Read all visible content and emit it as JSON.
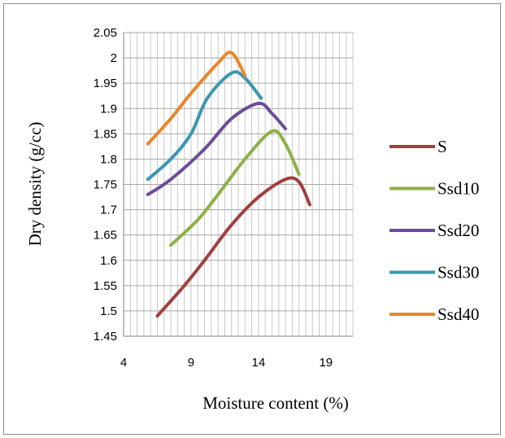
{
  "chart_data": {
    "type": "line",
    "title": "",
    "xlabel": "Moisture content (%)",
    "ylabel": "Dry density (g/cc)",
    "xlim": [
      4,
      21
    ],
    "ylim": [
      1.45,
      2.05
    ],
    "x_ticks": [
      "4",
      "9",
      "14",
      "19"
    ],
    "x_tick_values": [
      4,
      9,
      14,
      19
    ],
    "y_ticks": [
      "1.45",
      "1.5",
      "1.55",
      "1.6",
      "1.65",
      "1.7",
      "1.75",
      "1.8",
      "1.85",
      "1.9",
      "1.95",
      "2",
      "2.05"
    ],
    "y_tick_values": [
      1.45,
      1.5,
      1.55,
      1.6,
      1.65,
      1.7,
      1.75,
      1.8,
      1.85,
      1.9,
      1.95,
      2.0,
      2.05
    ],
    "grid": {
      "major": true,
      "minor_x": true
    },
    "legend_position": "right",
    "series": [
      {
        "name": "S",
        "color": "#a0413d",
        "x": [
          6.5,
          8.5,
          10,
          12,
          14,
          16,
          17,
          17.8
        ],
        "y": [
          1.49,
          1.55,
          1.6,
          1.67,
          1.725,
          1.76,
          1.755,
          1.71
        ]
      },
      {
        "name": "Ssd10",
        "color": "#8cb148",
        "x": [
          7.5,
          9.5,
          11,
          13,
          15,
          16,
          17
        ],
        "y": [
          1.63,
          1.68,
          1.73,
          1.8,
          1.855,
          1.83,
          1.77
        ]
      },
      {
        "name": "Ssd20",
        "color": "#6c4d97",
        "x": [
          5.8,
          7.5,
          10,
          12,
          14,
          15,
          16
        ],
        "y": [
          1.73,
          1.76,
          1.82,
          1.88,
          1.91,
          1.89,
          1.86
        ]
      },
      {
        "name": "Ssd30",
        "color": "#3c97b0",
        "x": [
          5.8,
          7.5,
          9,
          10.2,
          12,
          13,
          14.2
        ],
        "y": [
          1.76,
          1.8,
          1.85,
          1.92,
          1.97,
          1.96,
          1.92
        ]
      },
      {
        "name": "Ssd40",
        "color": "#e8872b",
        "x": [
          5.8,
          7.5,
          9,
          11,
          12,
          13
        ],
        "y": [
          1.83,
          1.88,
          1.93,
          1.99,
          2.01,
          1.965
        ]
      }
    ]
  }
}
